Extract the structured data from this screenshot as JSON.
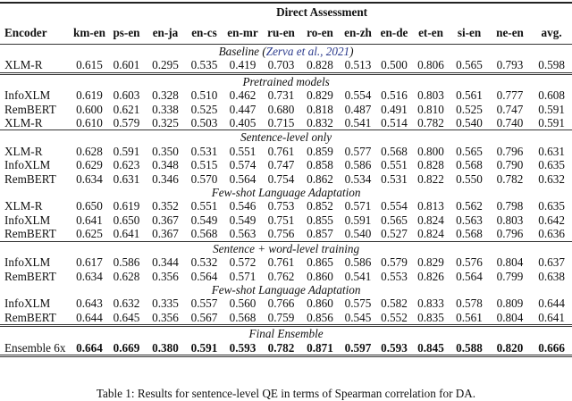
{
  "table": {
    "group_header": "Direct Assessment",
    "encoder_header": "Encoder",
    "columns": [
      "km-en",
      "ps-en",
      "en-ja",
      "en-cs",
      "en-mr",
      "ru-en",
      "ro-en",
      "en-zh",
      "en-de",
      "et-en",
      "si-en",
      "ne-en",
      "avg."
    ],
    "sections": [
      {
        "title": "Baseline (",
        "cite": "Zerva et al., 2021",
        "title_end": ")",
        "rows": [
          {
            "encoder": "XLM-R",
            "values": [
              "0.615",
              "0.601",
              "0.295",
              "0.535",
              "0.419",
              "0.703",
              "0.828",
              "0.513",
              "0.500",
              "0.806",
              "0.565",
              "0.793",
              "0.598"
            ]
          }
        ]
      },
      {
        "title": "Pretrained models",
        "rows": [
          {
            "encoder": "InfoXLM",
            "values": [
              "0.619",
              "0.603",
              "0.328",
              "0.510",
              "0.462",
              "0.731",
              "0.829",
              "0.554",
              "0.516",
              "0.803",
              "0.561",
              "0.777",
              "0.608"
            ]
          },
          {
            "encoder": "RemBERT",
            "values": [
              "0.600",
              "0.621",
              "0.338",
              "0.525",
              "0.447",
              "0.680",
              "0.818",
              "0.487",
              "0.491",
              "0.810",
              "0.525",
              "0.747",
              "0.591"
            ]
          },
          {
            "encoder": "XLM-R",
            "values": [
              "0.610",
              "0.579",
              "0.325",
              "0.503",
              "0.405",
              "0.715",
              "0.832",
              "0.541",
              "0.514",
              "0.782",
              "0.540",
              "0.740",
              "0.591"
            ]
          }
        ]
      },
      {
        "title": "Sentence-level only",
        "rows": [
          {
            "encoder": "XLM-R",
            "values": [
              "0.628",
              "0.591",
              "0.350",
              "0.531",
              "0.551",
              "0.761",
              "0.859",
              "0.577",
              "0.568",
              "0.800",
              "0.565",
              "0.796",
              "0.631"
            ]
          },
          {
            "encoder": "InfoXLM",
            "values": [
              "0.629",
              "0.623",
              "0.348",
              "0.515",
              "0.574",
              "0.747",
              "0.858",
              "0.586",
              "0.551",
              "0.828",
              "0.568",
              "0.790",
              "0.635"
            ]
          },
          {
            "encoder": "RemBERT",
            "values": [
              "0.634",
              "0.631",
              "0.346",
              "0.570",
              "0.564",
              "0.754",
              "0.862",
              "0.534",
              "0.531",
              "0.822",
              "0.550",
              "0.782",
              "0.632"
            ]
          }
        ]
      },
      {
        "title": "Few-shot Language Adaptation",
        "rows": [
          {
            "encoder": "XLM-R",
            "values": [
              "0.650",
              "0.619",
              "0.352",
              "0.551",
              "0.546",
              "0.753",
              "0.852",
              "0.571",
              "0.554",
              "0.813",
              "0.562",
              "0.798",
              "0.635"
            ]
          },
          {
            "encoder": "InfoXLM",
            "values": [
              "0.641",
              "0.650",
              "0.367",
              "0.549",
              "0.549",
              "0.751",
              "0.855",
              "0.591",
              "0.565",
              "0.824",
              "0.563",
              "0.803",
              "0.642"
            ]
          },
          {
            "encoder": "RemBERT",
            "values": [
              "0.625",
              "0.641",
              "0.367",
              "0.568",
              "0.563",
              "0.756",
              "0.857",
              "0.540",
              "0.527",
              "0.824",
              "0.568",
              "0.796",
              "0.636"
            ]
          }
        ]
      },
      {
        "title": "Sentence + word-level training",
        "rows": [
          {
            "encoder": "InfoXLM",
            "values": [
              "0.617",
              "0.586",
              "0.344",
              "0.532",
              "0.572",
              "0.761",
              "0.865",
              "0.586",
              "0.579",
              "0.829",
              "0.576",
              "0.804",
              "0.637"
            ]
          },
          {
            "encoder": "RemBERT",
            "values": [
              "0.634",
              "0.628",
              "0.356",
              "0.564",
              "0.571",
              "0.762",
              "0.860",
              "0.541",
              "0.553",
              "0.826",
              "0.564",
              "0.799",
              "0.638"
            ]
          }
        ]
      },
      {
        "title": "Few-shot Language Adaptation",
        "rows": [
          {
            "encoder": "InfoXLM",
            "values": [
              "0.643",
              "0.632",
              "0.335",
              "0.557",
              "0.560",
              "0.766",
              "0.860",
              "0.575",
              "0.582",
              "0.833",
              "0.578",
              "0.809",
              "0.644"
            ]
          },
          {
            "encoder": "RemBERT",
            "values": [
              "0.644",
              "0.645",
              "0.356",
              "0.567",
              "0.568",
              "0.759",
              "0.856",
              "0.545",
              "0.552",
              "0.835",
              "0.561",
              "0.804",
              "0.641"
            ]
          }
        ]
      },
      {
        "title": "Final Ensemble",
        "rows": [
          {
            "encoder": "Ensemble 6x",
            "bold": true,
            "values": [
              "0.664",
              "0.669",
              "0.380",
              "0.591",
              "0.593",
              "0.782",
              "0.871",
              "0.597",
              "0.593",
              "0.845",
              "0.588",
              "0.820",
              "0.666"
            ]
          }
        ]
      }
    ],
    "separators": [
      "sep",
      "none",
      "sep",
      "none",
      "sep",
      "none",
      "dsep"
    ]
  },
  "caption": "Table 1: Results for sentence-level QE in terms of Spearman correlation for DA."
}
